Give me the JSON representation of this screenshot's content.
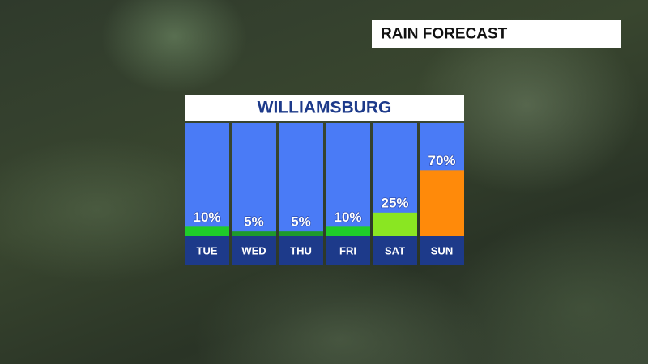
{
  "header": {
    "title": "RAIN FORECAST"
  },
  "chart_data": {
    "type": "bar",
    "title": "WILLIAMSBURG",
    "categories": [
      "TUE",
      "WED",
      "THU",
      "FRI",
      "SAT",
      "SUN"
    ],
    "values": [
      10,
      5,
      5,
      10,
      25,
      70
    ],
    "value_labels": [
      "10%",
      "5%",
      "5%",
      "10%",
      "25%",
      "70%"
    ],
    "colors": [
      "#1fcc2a",
      "#1e9a2c",
      "#1e9a2c",
      "#1fcc2a",
      "#8ae622",
      "#ff8a0a"
    ],
    "ylim": [
      0,
      120
    ]
  }
}
